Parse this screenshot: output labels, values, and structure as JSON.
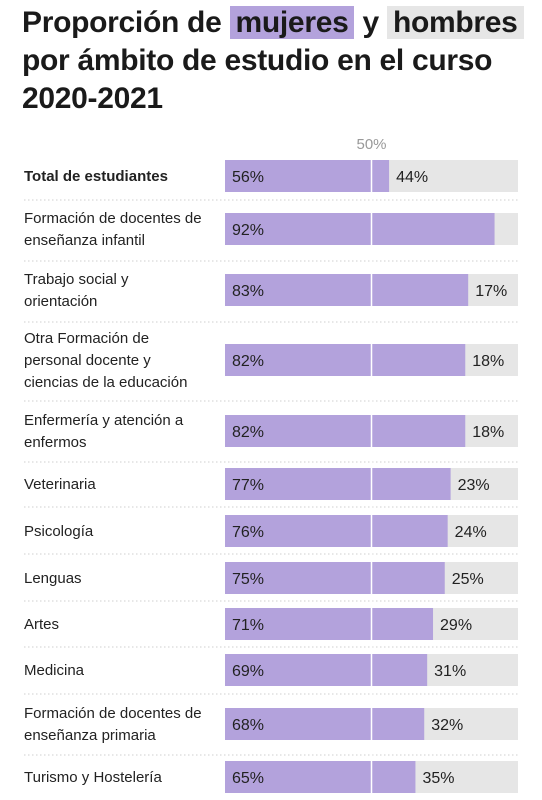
{
  "title": {
    "part1": "Proporción de",
    "women": "mujeres",
    "part2": "y",
    "men": "hombres",
    "part3": "por ámbito de estudio en el curso 2020-2021"
  },
  "colors": {
    "women": "#b3a2dc",
    "men": "#e6e6e6",
    "text": "#222222",
    "midline": "#ffffff",
    "separator": "#cfcfcf",
    "axis_label": "#999999"
  },
  "chart_data": {
    "type": "bar",
    "orientation": "horizontal",
    "stacked": true,
    "reference_label": "50%",
    "reference_value": 50,
    "xlim": [
      0,
      100
    ],
    "categories": [
      "Total de estudiantes",
      "Formación de docentes de enseñanza infantil",
      "Trabajo social y orientación",
      "Otra Formación de personal docente y ciencias de la educación",
      "Enfermería y atención a enfermos",
      "Veterinaria",
      "Psicología",
      "Lenguas",
      "Artes",
      "Medicina",
      "Formación de docentes de enseñanza primaria",
      "Turismo y Hostelería"
    ],
    "category_lines": [
      [
        "Total de estudiantes"
      ],
      [
        "Formación de docentes de",
        "enseñanza infantil"
      ],
      [
        "Trabajo social y",
        "orientación"
      ],
      [
        "Otra Formación de",
        "personal docente y",
        "ciencias de la educación"
      ],
      [
        "Enfermería y atención a",
        "enfermos"
      ],
      [
        "Veterinaria"
      ],
      [
        "Psicología"
      ],
      [
        "Lenguas"
      ],
      [
        "Artes"
      ],
      [
        "Medicina"
      ],
      [
        "Formación de docentes de",
        "enseñanza primaria"
      ],
      [
        "Turismo y Hostelería"
      ]
    ],
    "series": [
      {
        "values": [
          56,
          92,
          83,
          82,
          82,
          77,
          76,
          75,
          71,
          69,
          68,
          65
        ]
      },
      {
        "values": [
          44,
          8,
          17,
          18,
          18,
          23,
          24,
          25,
          29,
          31,
          32,
          35
        ]
      }
    ],
    "value_labels": {
      "women": [
        "56%",
        "92%",
        "83%",
        "82%",
        "82%",
        "77%",
        "76%",
        "75%",
        "71%",
        "69%",
        "68%",
        "65%"
      ],
      "men": [
        "44%",
        "",
        "17%",
        "18%",
        "18%",
        "23%",
        "24%",
        "25%",
        "29%",
        "31%",
        "32%",
        "35%"
      ]
    },
    "bold_categories": [
      0
    ]
  }
}
